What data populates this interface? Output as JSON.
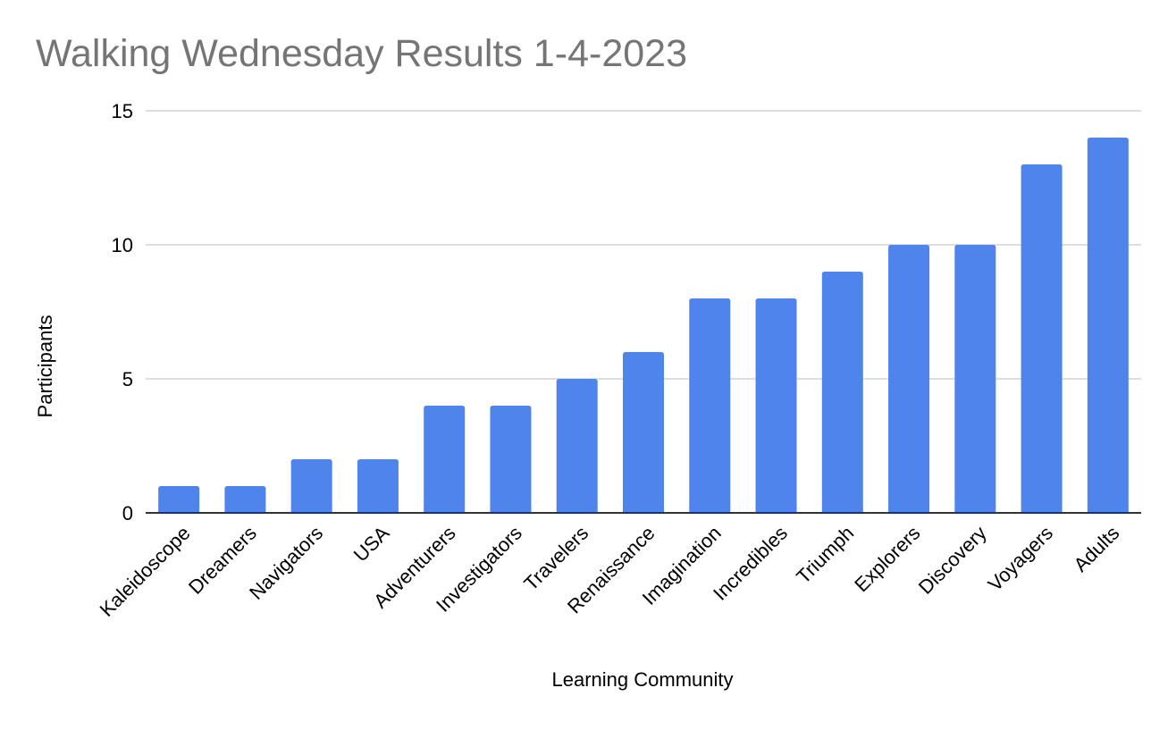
{
  "chart_data": {
    "type": "bar",
    "title": "Walking Wednesday Results 1-4-2023",
    "xlabel": "Learning Community",
    "ylabel": "Participants",
    "categories": [
      "Kaleidoscope",
      "Dreamers",
      "Navigators",
      "USA",
      "Adventurers",
      "Investigators",
      "Travelers",
      "Renaissance",
      "Imagination",
      "Incredibles",
      "Triumph",
      "Explorers",
      "Discovery",
      "Voyagers",
      "Adults"
    ],
    "series": [
      {
        "values": [
          1,
          1,
          2,
          2,
          4,
          4,
          5,
          6,
          8,
          8,
          9,
          10,
          10,
          13,
          14
        ]
      }
    ],
    "ylim": [
      0,
      15
    ],
    "yticks": [
      0,
      5,
      10,
      15
    ],
    "grid": true,
    "legend": "none",
    "colors": {
      "bar": "#5084ed",
      "grid": "#d3d3d3",
      "axis": "#333333",
      "title": "#757575",
      "text": "#000000"
    }
  }
}
